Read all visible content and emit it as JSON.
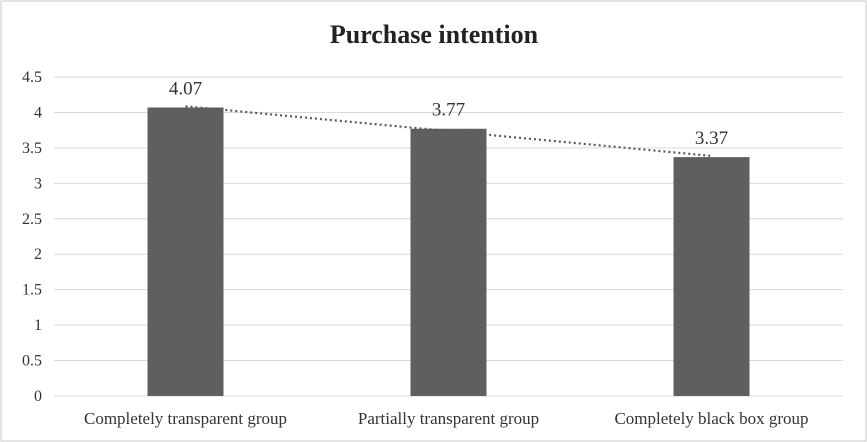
{
  "chart_data": {
    "type": "bar",
    "title": "Purchase intention",
    "xlabel": "",
    "ylabel": "",
    "categories": [
      "Completely transparent group",
      "Partially transparent group",
      "Completely black box group"
    ],
    "values": [
      4.07,
      3.77,
      3.37
    ],
    "data_labels": [
      "4.07",
      "3.77",
      "3.37"
    ],
    "ylim": [
      0,
      4.5
    ],
    "yticks": [
      "0",
      "0.5",
      "1",
      "1.5",
      "2",
      "2.5",
      "3",
      "3.5",
      "4",
      "4.5"
    ],
    "trendline": "linear",
    "grid": true,
    "legend": "none",
    "colors": {
      "bar": "#5f5f5f",
      "grid": "#d9d9d9",
      "trendline": "#595959",
      "border": "#c8c8c8"
    }
  }
}
